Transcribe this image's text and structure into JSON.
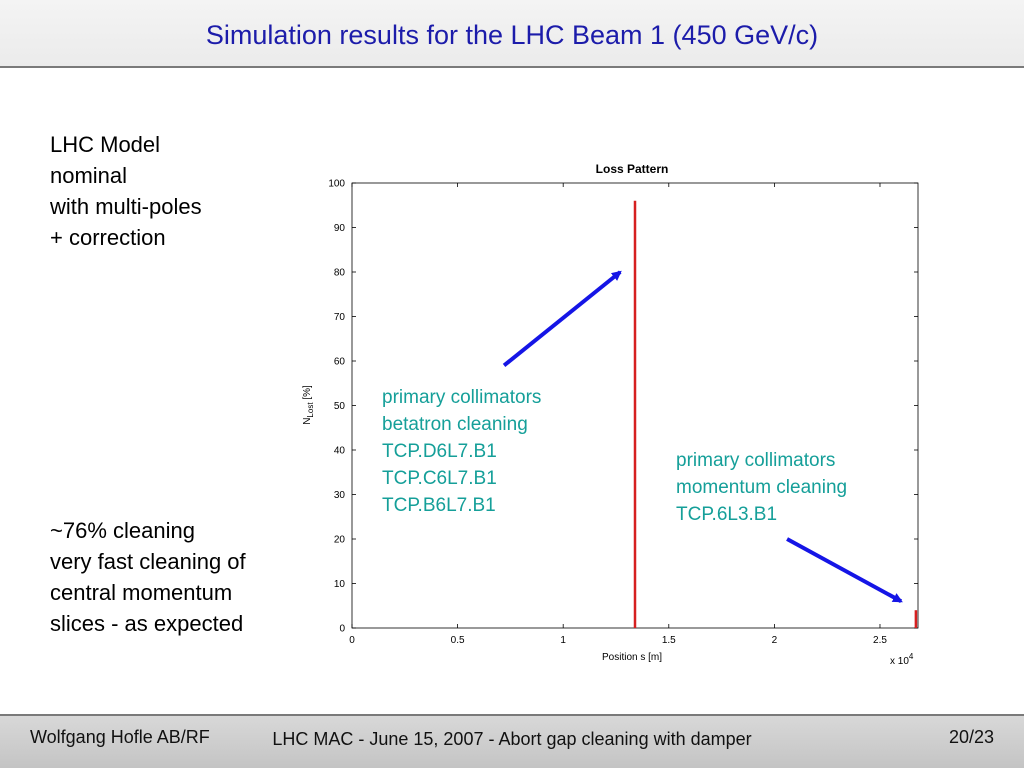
{
  "header": {
    "title": "Simulation results for the LHC Beam 1 (450 GeV/c)"
  },
  "left_top": [
    "LHC Model",
    "nominal",
    "with multi-poles",
    "+ correction"
  ],
  "left_bottom": [
    "~76% cleaning",
    "very fast cleaning of",
    "central momentum",
    "slices - as expected"
  ],
  "annotations": {
    "betatron": [
      "primary collimators",
      "betatron cleaning",
      "TCP.D6L7.B1",
      "TCP.C6L7.B1",
      "TCP.B6L7.B1"
    ],
    "momentum": [
      "primary collimators",
      "momentum cleaning",
      "TCP.6L3.B1"
    ]
  },
  "colors": {
    "title": "#1c1caa",
    "loss": "#d62020",
    "arrow": "#1515e6",
    "annotation": "#159f99"
  },
  "chart_data": {
    "type": "bar",
    "title": "Loss Pattern",
    "xlabel": "Position s [m]",
    "ylabel": "N",
    "ylabel_sub": "Lost",
    "ylabel_suffix": " [%]",
    "x_multiplier": "x 10",
    "x_multiplier_exp": "4",
    "xlim": [
      0,
      2.68
    ],
    "ylim": [
      0,
      100
    ],
    "x_ticks": [
      0,
      0.5,
      1,
      1.5,
      2,
      2.5
    ],
    "x_tick_labels": [
      "0",
      "0.5",
      "1",
      "1.5",
      "2",
      "2.5"
    ],
    "y_ticks": [
      0,
      10,
      20,
      30,
      40,
      50,
      60,
      70,
      80,
      90,
      100
    ],
    "y_tick_labels": [
      "0",
      "10",
      "20",
      "30",
      "40",
      "50",
      "60",
      "70",
      "80",
      "90",
      "100"
    ],
    "grid": false,
    "series": [
      {
        "x": [
          1.34,
          2.67
        ],
        "values": [
          96,
          4
        ]
      }
    ],
    "arrows": [
      {
        "from": [
          0.72,
          59
        ],
        "to": [
          1.27,
          80
        ]
      },
      {
        "from": [
          2.06,
          20
        ],
        "to": [
          2.6,
          6
        ]
      }
    ]
  },
  "footer": {
    "author": "Wolfgang Hofle AB/RF",
    "center": "LHC MAC - June 15, 2007 - Abort gap cleaning with damper",
    "page": "20/23"
  }
}
